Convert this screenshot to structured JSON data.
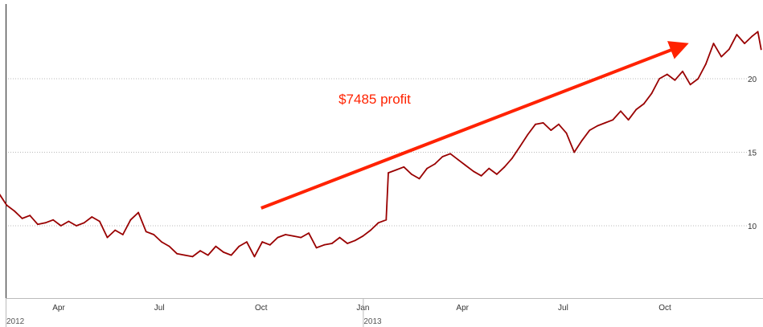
{
  "chart_data": {
    "type": "line",
    "title": "",
    "xlabel": "",
    "ylabel": "",
    "ylim": [
      3.5,
      24.5
    ],
    "xlim": [
      "2012-01-01",
      "2013-12-31"
    ],
    "grid": {
      "horizontal": true,
      "vertical": false,
      "style": "dotted"
    },
    "legend": "none",
    "y_axis_side": "right",
    "y_ticks": [
      10,
      15,
      20
    ],
    "x_ticks": [
      {
        "date": "2012-04-01",
        "label": "Apr"
      },
      {
        "date": "2012-07-01",
        "label": "Jul"
      },
      {
        "date": "2012-10-01",
        "label": "Oct"
      },
      {
        "date": "2013-01-01",
        "label": "Jan"
      },
      {
        "date": "2013-04-01",
        "label": "Apr"
      },
      {
        "date": "2013-07-01",
        "label": "Jul"
      },
      {
        "date": "2013-10-01",
        "label": "Oct"
      }
    ],
    "year_labels": [
      {
        "date": "2012-01-01",
        "label": "2012"
      },
      {
        "date": "2013-01-01",
        "label": "2013"
      }
    ],
    "series": [
      {
        "color": "#990000",
        "points": [
          [
            "2012-01-03",
            12.1
          ],
          [
            "2012-01-10",
            11.6
          ],
          [
            "2012-01-17",
            11.8
          ],
          [
            "2012-01-20",
            11.0
          ],
          [
            "2012-01-24",
            11.6
          ],
          [
            "2012-01-31",
            12.5
          ],
          [
            "2012-02-07",
            12.2
          ],
          [
            "2012-02-14",
            11.4
          ],
          [
            "2012-02-21",
            11.0
          ],
          [
            "2012-02-28",
            10.5
          ],
          [
            "2012-03-06",
            10.7
          ],
          [
            "2012-03-13",
            10.1
          ],
          [
            "2012-03-20",
            10.2
          ],
          [
            "2012-03-27",
            10.4
          ],
          [
            "2012-04-03",
            10.0
          ],
          [
            "2012-04-10",
            10.3
          ],
          [
            "2012-04-17",
            10.0
          ],
          [
            "2012-04-24",
            10.2
          ],
          [
            "2012-05-01",
            10.6
          ],
          [
            "2012-05-08",
            10.3
          ],
          [
            "2012-05-15",
            9.2
          ],
          [
            "2012-05-22",
            9.7
          ],
          [
            "2012-05-29",
            9.4
          ],
          [
            "2012-06-05",
            10.4
          ],
          [
            "2012-06-12",
            10.9
          ],
          [
            "2012-06-19",
            9.6
          ],
          [
            "2012-06-26",
            9.4
          ],
          [
            "2012-07-03",
            8.9
          ],
          [
            "2012-07-10",
            8.6
          ],
          [
            "2012-07-17",
            8.1
          ],
          [
            "2012-07-24",
            8.0
          ],
          [
            "2012-07-31",
            7.9
          ],
          [
            "2012-08-07",
            8.3
          ],
          [
            "2012-08-14",
            8.0
          ],
          [
            "2012-08-21",
            8.6
          ],
          [
            "2012-08-28",
            8.2
          ],
          [
            "2012-09-04",
            8.0
          ],
          [
            "2012-09-11",
            8.6
          ],
          [
            "2012-09-18",
            8.9
          ],
          [
            "2012-09-25",
            7.9
          ],
          [
            "2012-10-02",
            8.9
          ],
          [
            "2012-10-09",
            8.7
          ],
          [
            "2012-10-16",
            9.2
          ],
          [
            "2012-10-23",
            9.4
          ],
          [
            "2012-10-30",
            9.3
          ],
          [
            "2012-11-06",
            9.2
          ],
          [
            "2012-11-13",
            9.5
          ],
          [
            "2012-11-20",
            8.5
          ],
          [
            "2012-11-27",
            8.7
          ],
          [
            "2012-12-04",
            8.8
          ],
          [
            "2012-12-11",
            9.2
          ],
          [
            "2012-12-18",
            8.8
          ],
          [
            "2012-12-25",
            9.0
          ],
          [
            "2013-01-01",
            9.3
          ],
          [
            "2013-01-08",
            9.7
          ],
          [
            "2013-01-15",
            10.2
          ],
          [
            "2013-01-22",
            10.4
          ],
          [
            "2013-01-24",
            13.6
          ],
          [
            "2013-01-31",
            13.8
          ],
          [
            "2013-02-07",
            14.0
          ],
          [
            "2013-02-14",
            13.5
          ],
          [
            "2013-02-21",
            13.2
          ],
          [
            "2013-02-28",
            13.9
          ],
          [
            "2013-03-07",
            14.2
          ],
          [
            "2013-03-14",
            14.7
          ],
          [
            "2013-03-21",
            14.9
          ],
          [
            "2013-03-28",
            14.5
          ],
          [
            "2013-04-04",
            14.1
          ],
          [
            "2013-04-11",
            13.7
          ],
          [
            "2013-04-18",
            13.4
          ],
          [
            "2013-04-25",
            13.9
          ],
          [
            "2013-05-02",
            13.5
          ],
          [
            "2013-05-09",
            14.0
          ],
          [
            "2013-05-16",
            14.6
          ],
          [
            "2013-05-23",
            15.4
          ],
          [
            "2013-05-30",
            16.2
          ],
          [
            "2013-06-06",
            16.9
          ],
          [
            "2013-06-13",
            17.0
          ],
          [
            "2013-06-20",
            16.5
          ],
          [
            "2013-06-27",
            16.9
          ],
          [
            "2013-07-04",
            16.3
          ],
          [
            "2013-07-11",
            15.0
          ],
          [
            "2013-07-18",
            15.8
          ],
          [
            "2013-07-25",
            16.5
          ],
          [
            "2013-08-01",
            16.8
          ],
          [
            "2013-08-08",
            17.0
          ],
          [
            "2013-08-15",
            17.2
          ],
          [
            "2013-08-22",
            17.8
          ],
          [
            "2013-08-29",
            17.2
          ],
          [
            "2013-09-05",
            17.9
          ],
          [
            "2013-09-12",
            18.3
          ],
          [
            "2013-09-19",
            19.0
          ],
          [
            "2013-09-26",
            20.0
          ],
          [
            "2013-10-03",
            20.3
          ],
          [
            "2013-10-10",
            19.9
          ],
          [
            "2013-10-17",
            20.5
          ],
          [
            "2013-10-24",
            19.6
          ],
          [
            "2013-10-31",
            20.0
          ],
          [
            "2013-11-07",
            21.0
          ],
          [
            "2013-11-14",
            22.4
          ],
          [
            "2013-11-21",
            21.5
          ],
          [
            "2013-11-28",
            22.0
          ],
          [
            "2013-12-05",
            23.0
          ],
          [
            "2013-12-12",
            22.4
          ],
          [
            "2013-12-19",
            22.9
          ],
          [
            "2013-12-24",
            23.2
          ],
          [
            "2013-12-27",
            22.0
          ]
        ]
      }
    ],
    "annotations": [
      {
        "type": "text",
        "text": "$7485 profit",
        "color": "#ff2200",
        "date": "2012-12-10",
        "value": 18.3
      },
      {
        "type": "arrow",
        "color": "#ff2200",
        "from": {
          "date": "2012-10-01",
          "value": 11.2
        },
        "to": {
          "date": "2013-10-15",
          "value": 22.2
        }
      }
    ]
  }
}
